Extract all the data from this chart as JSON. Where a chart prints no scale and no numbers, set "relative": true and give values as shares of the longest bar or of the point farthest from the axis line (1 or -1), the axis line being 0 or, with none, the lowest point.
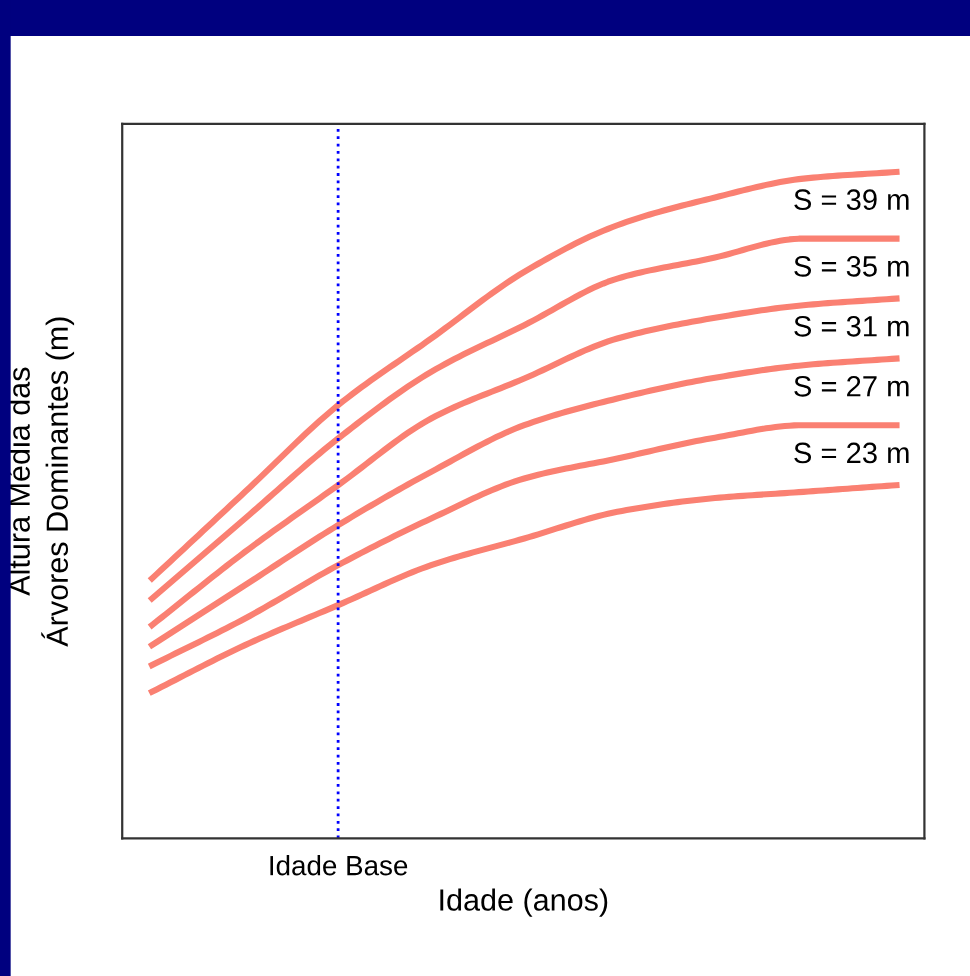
{
  "chart_data": {
    "type": "line",
    "relative": true,
    "xlabel": "Idade (anos)",
    "ylabel": "Altura Média das\nÁrvores Dominantes (m)",
    "categories": [
      null,
      null,
      null,
      null,
      null,
      null,
      null,
      null,
      null
    ],
    "series": [
      {
        "name": "S = 39 m",
        "color": "#fa8072",
        "values": [
          0.39,
          0.52,
          0.65,
          0.75,
          0.85,
          0.92,
          0.96,
          0.99,
          1.0
        ]
      },
      {
        "name": "S = 35 m",
        "color": "#fa8072",
        "values": [
          0.36,
          0.48,
          0.6,
          0.7,
          0.77,
          0.84,
          0.87,
          0.9,
          0.9
        ]
      },
      {
        "name": "S = 31 m",
        "color": "#fa8072",
        "values": [
          0.32,
          0.43,
          0.53,
          0.63,
          0.69,
          0.75,
          0.78,
          0.8,
          0.81
        ]
      },
      {
        "name": "S = 27 m",
        "color": "#fa8072",
        "values": [
          0.29,
          0.38,
          0.47,
          0.55,
          0.62,
          0.66,
          0.69,
          0.71,
          0.72
        ]
      },
      {
        "name": "S = 23 m",
        "color": "#fa8072",
        "values": [
          0.26,
          0.33,
          0.41,
          0.48,
          0.54,
          0.57,
          0.6,
          0.62,
          0.62
        ]
      },
      {
        "color": "#fa8072",
        "values": [
          0.22,
          0.29,
          0.35,
          0.41,
          0.45,
          0.49,
          0.51,
          0.52,
          0.53
        ]
      }
    ],
    "annotations": [
      "Idade Base"
    ],
    "legend": false,
    "marker": "none",
    "line_style": "solid"
  }
}
